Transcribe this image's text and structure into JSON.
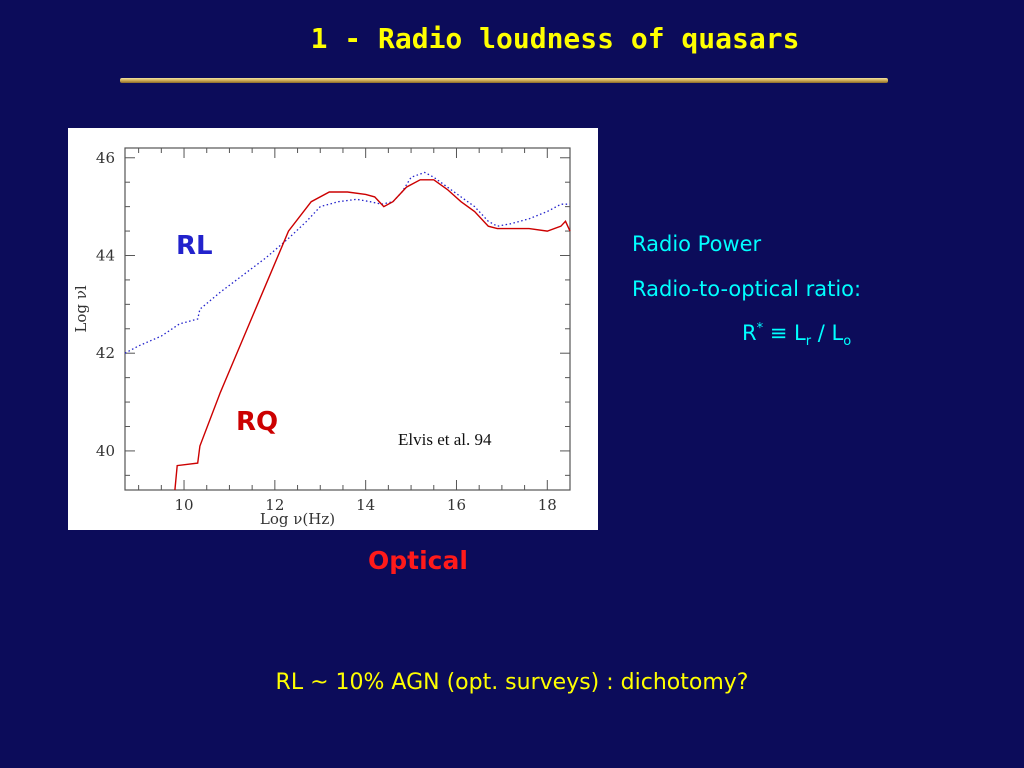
{
  "title": "1 - Radio loudness of quasars",
  "colors": {
    "background": "#0c0c5a",
    "title": "#ffff00",
    "rl": "#2222cc",
    "rq": "#cc0000",
    "optical": "#ff1a1a",
    "side_text": "#00ffff"
  },
  "figure": {
    "rl_label": "RL",
    "rq_label": "RQ",
    "citation": "Elvis et al. 94",
    "optical_label": "Optical"
  },
  "side": {
    "radio_power": "Radio Power",
    "ratio": "Radio-to-optical ratio:",
    "formula_R": "R",
    "formula_star": "*",
    "formula_equiv": " ≡ L",
    "formula_r": "r",
    "formula_div": " / L",
    "formula_o": "o"
  },
  "bottom_text": "RL ~ 10% AGN (opt. surveys) :  dichotomy?",
  "chart_data": {
    "type": "line",
    "xlabel": "Log ν(Hz)",
    "ylabel": "Log νl",
    "xlim": [
      8.7,
      18.5
    ],
    "ylim": [
      39.2,
      46.2
    ],
    "xticks": [
      10,
      12,
      14,
      16,
      18
    ],
    "yticks": [
      40,
      42,
      44,
      46
    ],
    "series": [
      {
        "name": "RL",
        "style": "dotted",
        "color": "#2222cc",
        "x": [
          8.7,
          9.0,
          9.5,
          9.9,
          10.3,
          10.35,
          10.8,
          11.3,
          11.8,
          12.3,
          12.7,
          13.0,
          13.4,
          13.8,
          14.1,
          14.35,
          14.6,
          14.8,
          15.0,
          15.3,
          15.5,
          15.8,
          16.1,
          16.4,
          16.7,
          16.9,
          17.2,
          17.6,
          18.0,
          18.3,
          18.5
        ],
        "y": [
          42.0,
          42.15,
          42.35,
          42.6,
          42.7,
          42.9,
          43.25,
          43.6,
          43.95,
          44.35,
          44.7,
          45.0,
          45.1,
          45.15,
          45.1,
          45.05,
          45.1,
          45.3,
          45.6,
          45.7,
          45.6,
          45.4,
          45.2,
          45.0,
          44.7,
          44.6,
          44.65,
          44.75,
          44.9,
          45.05,
          45.05
        ]
      },
      {
        "name": "RQ",
        "style": "solid",
        "color": "#cc0000",
        "x": [
          9.8,
          9.85,
          10.3,
          10.35,
          10.8,
          11.3,
          11.8,
          12.3,
          12.8,
          13.2,
          13.6,
          14.0,
          14.2,
          14.4,
          14.6,
          14.9,
          15.2,
          15.5,
          15.8,
          16.1,
          16.4,
          16.7,
          16.9,
          17.2,
          17.6,
          18.0,
          18.3,
          18.4,
          18.5
        ],
        "y": [
          39.2,
          39.7,
          39.75,
          40.1,
          41.2,
          42.3,
          43.4,
          44.5,
          45.1,
          45.3,
          45.3,
          45.25,
          45.2,
          45.0,
          45.1,
          45.4,
          45.55,
          45.55,
          45.35,
          45.1,
          44.9,
          44.6,
          44.55,
          44.55,
          44.55,
          44.5,
          44.6,
          44.7,
          44.5
        ]
      }
    ]
  }
}
